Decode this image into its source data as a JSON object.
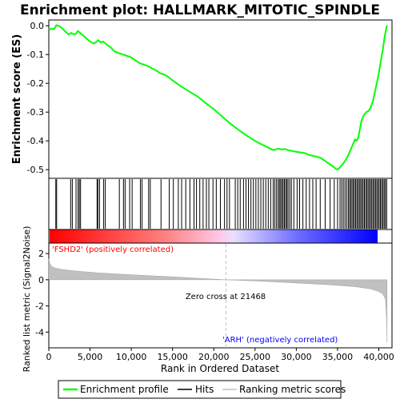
{
  "chart_data": {
    "type": "line",
    "title": "Enrichment plot: HALLMARK_MITOTIC_SPINDLE",
    "xlabel": "Rank in Ordered Dataset",
    "xlim": [
      0,
      41600
    ],
    "x_ticks": [
      0,
      5000,
      10000,
      15000,
      20000,
      25000,
      30000,
      35000,
      40000
    ],
    "x_tick_labels": [
      "0",
      "5,000",
      "10,000",
      "15,000",
      "20,000",
      "25,000",
      "30,000",
      "35,000",
      "40,000"
    ],
    "es_panel": {
      "ylabel": "Enrichment score (ES)",
      "ylim": [
        -0.53,
        0.02
      ],
      "y_ticks": [
        0.0,
        -0.1,
        -0.2,
        -0.3,
        -0.4,
        -0.5
      ],
      "y_tick_labels": [
        "0.0",
        "-0.1",
        "-0.2",
        "-0.3",
        "-0.4",
        "-0.5"
      ],
      "series": [
        {
          "name": "Enrichment profile",
          "color": "#00ff00",
          "x": [
            0,
            300,
            600,
            800,
            900,
            1200,
            1600,
            2000,
            2400,
            2700,
            3000,
            3300,
            3500,
            3800,
            4200,
            4600,
            5000,
            5500,
            6000,
            6300,
            6600,
            7000,
            7500,
            8000,
            8500,
            9000,
            9500,
            10000,
            10500,
            11000,
            11500,
            12000,
            12500,
            13000,
            13500,
            14000,
            14500,
            15000,
            16000,
            17000,
            18000,
            19000,
            20000,
            21000,
            22000,
            23000,
            24000,
            25000,
            26000,
            26700,
            27200,
            27500,
            27800,
            28200,
            28600,
            29000,
            29500,
            30000,
            30500,
            31000,
            31500,
            32000,
            32500,
            33000,
            33500,
            34000,
            34500,
            34800,
            35000,
            35200,
            35400,
            35700,
            36000,
            36300,
            36600,
            36900,
            37100,
            37300,
            37500,
            37700,
            37900,
            38200,
            38500,
            38800,
            39000,
            39300,
            39600,
            39900,
            40200,
            40500,
            40700,
            40900,
            41000
          ],
          "y": [
            -0.015,
            -0.01,
            -0.012,
            -0.005,
            0.002,
            0.0,
            -0.008,
            -0.02,
            -0.03,
            -0.025,
            -0.03,
            -0.028,
            -0.018,
            -0.025,
            -0.035,
            -0.045,
            -0.055,
            -0.062,
            -0.05,
            -0.058,
            -0.055,
            -0.065,
            -0.075,
            -0.09,
            -0.095,
            -0.1,
            -0.105,
            -0.11,
            -0.12,
            -0.13,
            -0.135,
            -0.14,
            -0.148,
            -0.155,
            -0.165,
            -0.17,
            -0.178,
            -0.19,
            -0.21,
            -0.228,
            -0.245,
            -0.268,
            -0.29,
            -0.315,
            -0.34,
            -0.362,
            -0.382,
            -0.4,
            -0.415,
            -0.425,
            -0.432,
            -0.43,
            -0.427,
            -0.43,
            -0.428,
            -0.432,
            -0.435,
            -0.438,
            -0.44,
            -0.442,
            -0.448,
            -0.452,
            -0.455,
            -0.46,
            -0.47,
            -0.48,
            -0.49,
            -0.497,
            -0.5,
            -0.495,
            -0.488,
            -0.478,
            -0.465,
            -0.45,
            -0.43,
            -0.41,
            -0.395,
            -0.4,
            -0.39,
            -0.36,
            -0.33,
            -0.31,
            -0.3,
            -0.295,
            -0.285,
            -0.26,
            -0.22,
            -0.18,
            -0.13,
            -0.08,
            -0.04,
            -0.01,
            0.002
          ]
        }
      ]
    },
    "hits_panel": {
      "legend_label": "Hits",
      "hit_ranks": [
        850,
        950,
        2650,
        2850,
        3300,
        3550,
        3700,
        3850,
        5850,
        5950,
        6150,
        6650,
        6850,
        8550,
        9050,
        9250,
        9800,
        10100,
        11100,
        11300,
        12100,
        12300,
        13600,
        14600,
        15100,
        15700,
        16100,
        16600,
        17100,
        17600,
        17900,
        18300,
        18700,
        19100,
        19400,
        19900,
        20300,
        20800,
        21300,
        21600,
        21900,
        22600,
        22900,
        23200,
        23600,
        23900,
        24200,
        24500,
        24800,
        25100,
        25400,
        25700,
        26000,
        26300,
        26600,
        26900,
        27200,
        27400,
        27600,
        27800,
        27950,
        28100,
        28250,
        28400,
        28550,
        28700,
        28850,
        29000,
        29200,
        29400,
        29700,
        30100,
        30400,
        30800,
        31200,
        31600,
        32000,
        32400,
        32900,
        33500,
        34100,
        34600,
        35000,
        35300,
        35500,
        35700,
        35900,
        36100,
        36300,
        36450,
        36600,
        36750,
        36900,
        37050,
        37200,
        37350,
        37500,
        37650,
        37800,
        37950,
        38100,
        38250,
        38400,
        38550,
        38700,
        38850,
        39000,
        39150,
        39300,
        39450,
        39600,
        39750,
        39900,
        40050,
        40200,
        40350,
        40500,
        40650,
        40800,
        40950
      ]
    },
    "rank_panel": {
      "ylabel": "Ranked list metric (Signal2Noise)",
      "ylim": [
        -5.2,
        2.8
      ],
      "y_ticks": [
        2,
        0,
        -2,
        -4
      ],
      "y_tick_labels": [
        "2",
        "0",
        "-2",
        "-4"
      ],
      "zero_cross_label": "Zero cross at 21468",
      "zero_cross_rank": 21468,
      "positive_label": "'FSHD2' (positively correlated)",
      "negative_label": "'ARH' (negatively correlated)",
      "legend_label": "Ranking metric scores",
      "n_genes": 41000,
      "metric_x": [
        0,
        100,
        300,
        700,
        1500,
        3000,
        6000,
        10000,
        15000,
        21468,
        26000,
        30000,
        34000,
        37000,
        39000,
        40000,
        40500,
        40800,
        40950,
        41000
      ],
      "metric_y": [
        1.6,
        1.3,
        1.05,
        0.9,
        0.8,
        0.68,
        0.52,
        0.38,
        0.22,
        0.0,
        -0.12,
        -0.25,
        -0.38,
        -0.52,
        -0.7,
        -0.9,
        -1.1,
        -1.5,
        -3.0,
        -4.8
      ]
    },
    "colors": {
      "es_line": "#00ff00",
      "hit_line": "#000000",
      "metric_fill": "#c0c0c0",
      "positive_text": "#ff0000",
      "negative_text": "#0000ff",
      "zero_line": "#c0c0c0"
    },
    "legend": {
      "entries": [
        "Enrichment profile",
        "Hits",
        "Ranking metric scores"
      ],
      "placement": "bottom"
    }
  }
}
